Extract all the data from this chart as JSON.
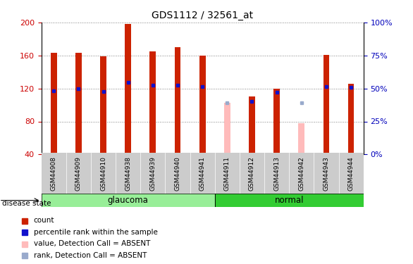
{
  "title": "GDS1112 / 32561_at",
  "samples": [
    "GSM44908",
    "GSM44909",
    "GSM44910",
    "GSM44938",
    "GSM44939",
    "GSM44940",
    "GSM44941",
    "GSM44911",
    "GSM44912",
    "GSM44913",
    "GSM44942",
    "GSM44943",
    "GSM44944"
  ],
  "groups": [
    "glaucoma",
    "glaucoma",
    "glaucoma",
    "glaucoma",
    "glaucoma",
    "glaucoma",
    "glaucoma",
    "normal",
    "normal",
    "normal",
    "normal",
    "normal",
    "normal"
  ],
  "count_values": [
    163,
    163,
    159,
    198,
    165,
    170,
    160,
    null,
    110,
    120,
    null,
    161,
    126
  ],
  "percentile_values": [
    117,
    120,
    116,
    127,
    124,
    124,
    122,
    null,
    104,
    115,
    null,
    122,
    121
  ],
  "absent_count": [
    null,
    null,
    null,
    null,
    null,
    null,
    null,
    103,
    null,
    null,
    78,
    null,
    null
  ],
  "absent_rank": [
    null,
    null,
    null,
    null,
    null,
    null,
    null,
    103,
    null,
    null,
    103,
    null,
    null
  ],
  "ymin": 40,
  "ymax": 200,
  "yticks_left": [
    40,
    80,
    120,
    160,
    200
  ],
  "yticks_right_vals": [
    40,
    80,
    120,
    160,
    200
  ],
  "yticks_right_labels": [
    "0%",
    "25%",
    "50%",
    "75%",
    "100%"
  ],
  "glaucoma_color": "#98ee98",
  "normal_color": "#33cc33",
  "bar_color_red": "#cc2200",
  "bar_color_pink": "#ffbbbb",
  "marker_color_blue": "#1111cc",
  "marker_color_lightblue": "#99aacc",
  "left_axis_color": "#cc0000",
  "right_axis_color": "#0000bb",
  "bar_width": 0.25,
  "tick_label_fontsize": 6.5,
  "title_fontsize": 10
}
